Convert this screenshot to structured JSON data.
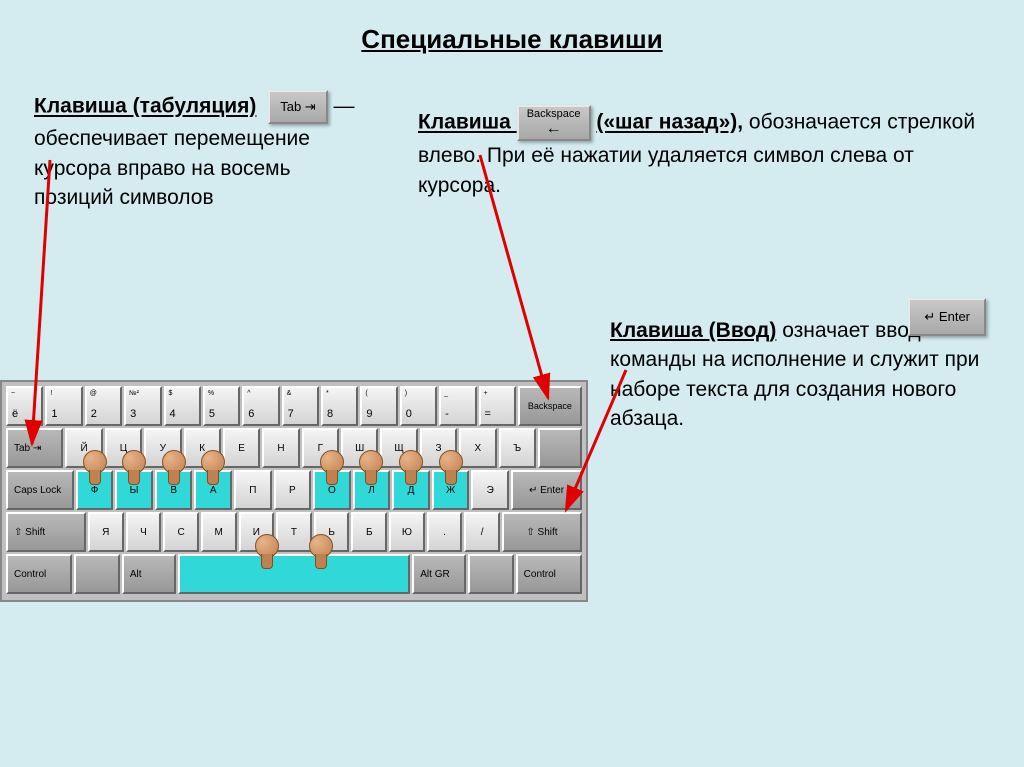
{
  "title": "Специальные клавиши",
  "sections": {
    "tab": {
      "heading": "Клавиша (табуляция)",
      "body": " — обеспечивает перемещение курсора вправо на восемь позиций символов",
      "key_label": "Tab ⇥"
    },
    "backspace": {
      "heading_before": "Клавиша ",
      "heading_after": "(«шаг назад»),",
      "body": " обозначается стрелкой влево. При её нажатии удаляется символ слева от курсора.",
      "key_label_top": "Backspace",
      "key_label_arrow": "←"
    },
    "enter": {
      "heading": "Клавиша (Ввод)",
      "body": " означает ввод команды на исполнение и служит при наборе текста для создания нового абзаца.",
      "key_label": "↵ Enter"
    }
  },
  "keyboard": {
    "row1": [
      {
        "top": "~",
        "bot": "ё"
      },
      {
        "top": "!",
        "bot": "1"
      },
      {
        "top": "@",
        "bot": "2"
      },
      {
        "top": "№²",
        "bot": "3"
      },
      {
        "top": "$",
        "bot": "4"
      },
      {
        "top": "%",
        "bot": "5"
      },
      {
        "top": "^",
        "bot": "6"
      },
      {
        "top": "&",
        "bot": "7"
      },
      {
        "top": "*",
        "bot": "8"
      },
      {
        "top": "(",
        "bot": "9"
      },
      {
        "top": ")",
        "bot": "0"
      },
      {
        "top": "_",
        "bot": "-"
      },
      {
        "top": "+",
        "bot": "="
      }
    ],
    "row1_backspace": "Backspace",
    "row2_tab": "Tab ⇥",
    "row2": [
      "Й",
      "Ц",
      "У",
      "К",
      "Е",
      "Н",
      "Г",
      "Ш",
      "Щ",
      "З",
      "Х",
      "Ъ"
    ],
    "row3_caps": "Caps Lock",
    "row3": [
      "Ф",
      "Ы",
      "В",
      "А",
      "П",
      "Р",
      "О",
      "Л",
      "Д",
      "Ж",
      "Э"
    ],
    "row3_home_indices": [
      0,
      1,
      2,
      3,
      6,
      7,
      8,
      9
    ],
    "row3_enter": "↵ Enter",
    "row4_shift_l": "⇧ Shift",
    "row4": [
      "Я",
      "Ч",
      "С",
      "М",
      "И",
      "Т",
      "Ь",
      "Б",
      "Ю",
      ".",
      "/"
    ],
    "row4_shift_r": "⇧ Shift",
    "row5": [
      "Control",
      "",
      "Alt",
      "SPACE",
      "Alt GR",
      "",
      "Control"
    ]
  },
  "colors": {
    "bg": "#d4ecf0",
    "arrow": "#e00000",
    "home_key": "#30d8d8",
    "finger": "#c08050"
  }
}
